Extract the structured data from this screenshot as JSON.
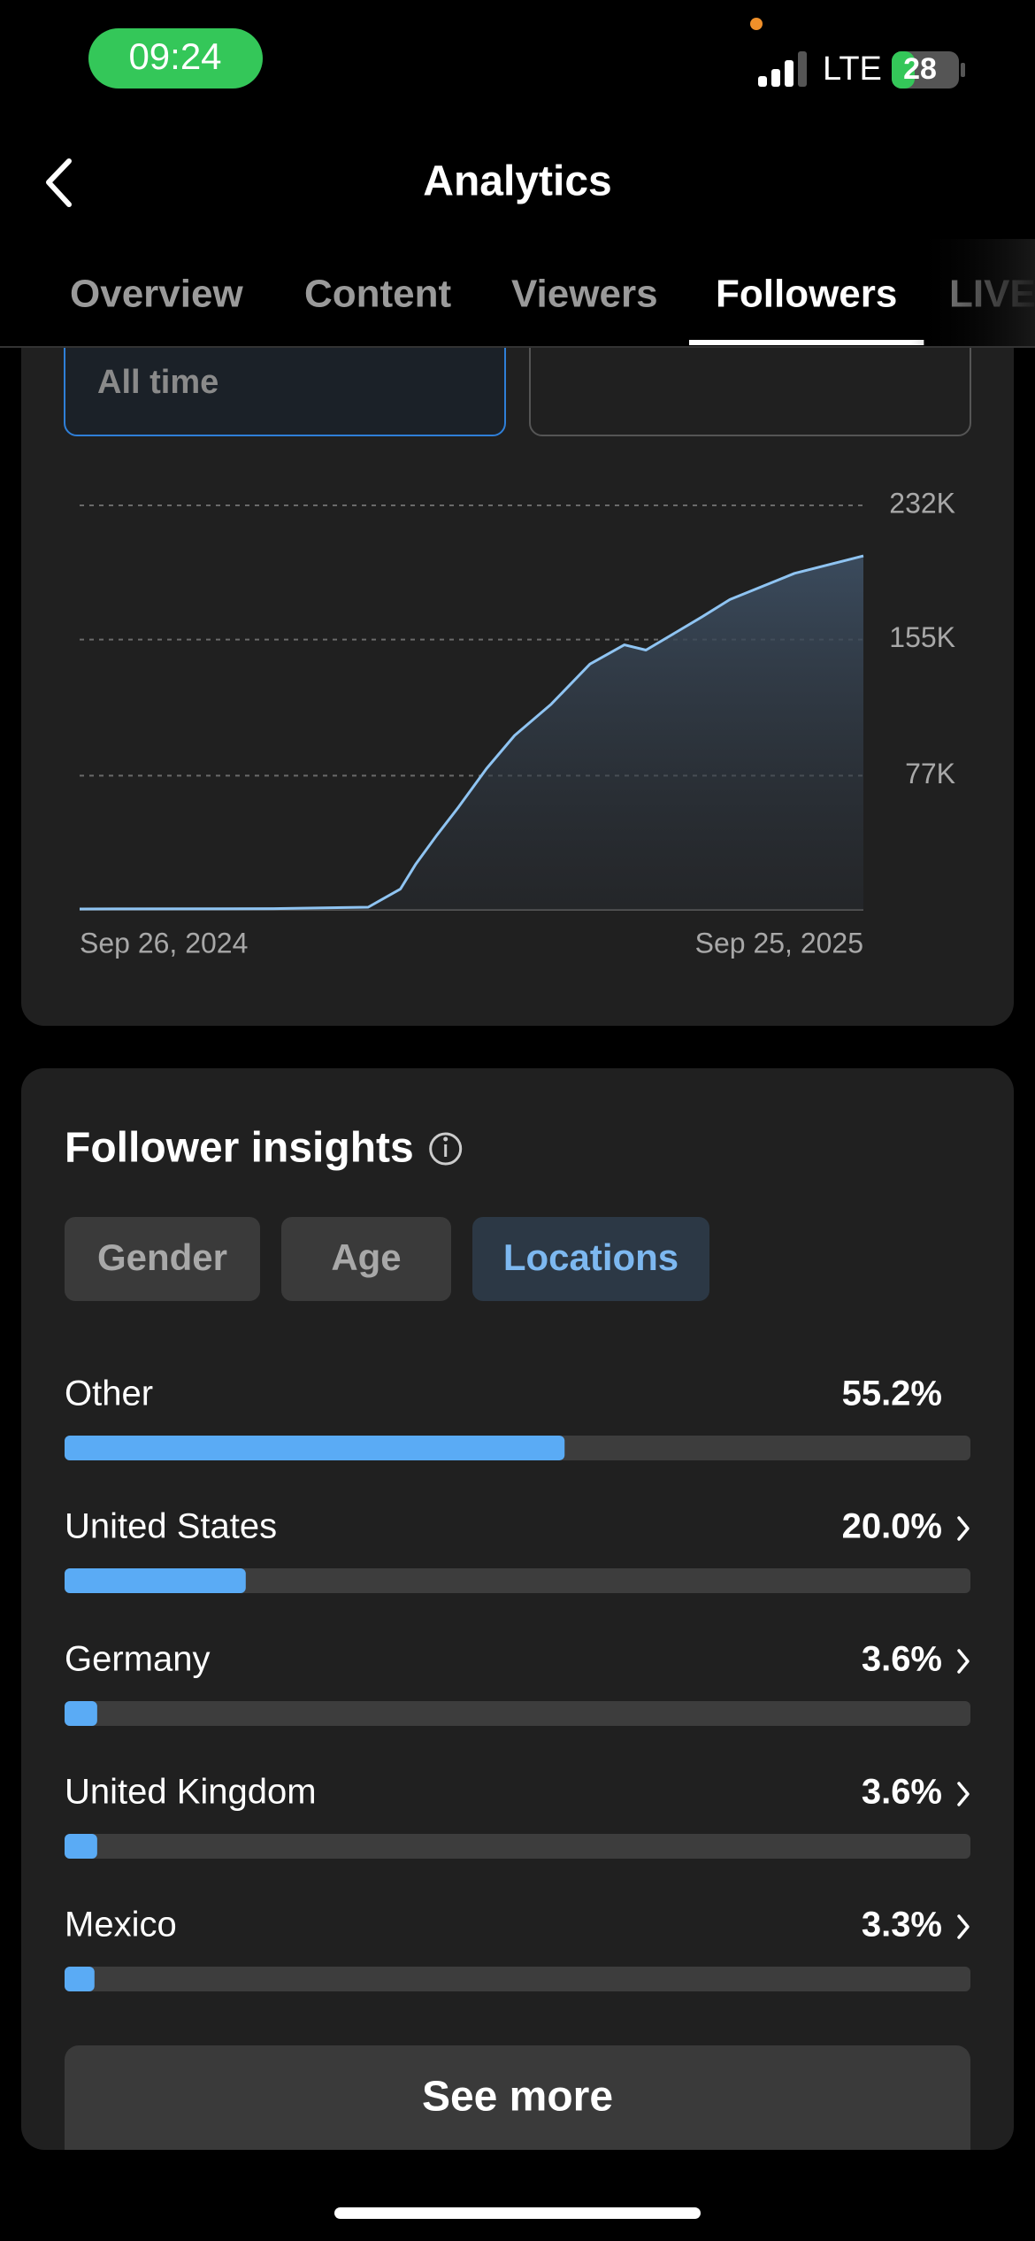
{
  "status_bar": {
    "time": "09:24",
    "network": "LTE",
    "battery": "28"
  },
  "header": {
    "title": "Analytics"
  },
  "tabs": [
    {
      "label": "Overview"
    },
    {
      "label": "Content"
    },
    {
      "label": "Viewers"
    },
    {
      "label": "Followers",
      "selected": true
    },
    {
      "label": "LIVE"
    }
  ],
  "filter": {
    "period": "All time"
  },
  "chart_data": {
    "type": "area",
    "x": [
      "2024-09-26",
      "2024-12-25",
      "2025-02-07",
      "2025-02-22",
      "2025-03-01",
      "2025-03-11",
      "2025-03-21",
      "2025-04-03",
      "2025-04-16",
      "2025-05-03",
      "2025-05-21",
      "2025-06-06",
      "2025-06-16",
      "2025-07-12",
      "2025-07-25",
      "2025-08-24",
      "2025-09-25"
    ],
    "series": [
      {
        "name": "Followers",
        "color": "#8fc4f2",
        "values": [
          500,
          700,
          1500,
          12000,
          26000,
          43000,
          59000,
          81000,
          100000,
          118000,
          141000,
          152000,
          149000,
          168000,
          178000,
          193000,
          203000
        ]
      }
    ],
    "xlim": [
      "2024-09-26",
      "2025-09-25"
    ],
    "xticks": [
      {
        "value": "2024-09-26",
        "label": "Sep 26, 2024"
      },
      {
        "value": "2025-09-25",
        "label": "Sep 25, 2025"
      }
    ],
    "ylim": [
      0,
      232000
    ],
    "yticks": [
      {
        "value": 77000,
        "label": "77K"
      },
      {
        "value": 155000,
        "label": "155K"
      },
      {
        "value": 232000,
        "label": "232K"
      }
    ],
    "grid": true
  },
  "insights": {
    "title": "Follower insights",
    "tabs": [
      {
        "label": "Gender"
      },
      {
        "label": "Age"
      },
      {
        "label": "Locations",
        "selected": true
      }
    ],
    "locations": {
      "type": "bar",
      "categories": [
        "Other",
        "United States",
        "Germany",
        "United Kingdom",
        "Mexico"
      ],
      "values": [
        55.2,
        20.0,
        3.6,
        3.6,
        3.3
      ],
      "value_labels": [
        "55.2%",
        "20.0%",
        "3.6%",
        "3.6%",
        "3.3%"
      ],
      "xlim": [
        0,
        100
      ],
      "color": "#5aabf5"
    },
    "button": "See more"
  }
}
